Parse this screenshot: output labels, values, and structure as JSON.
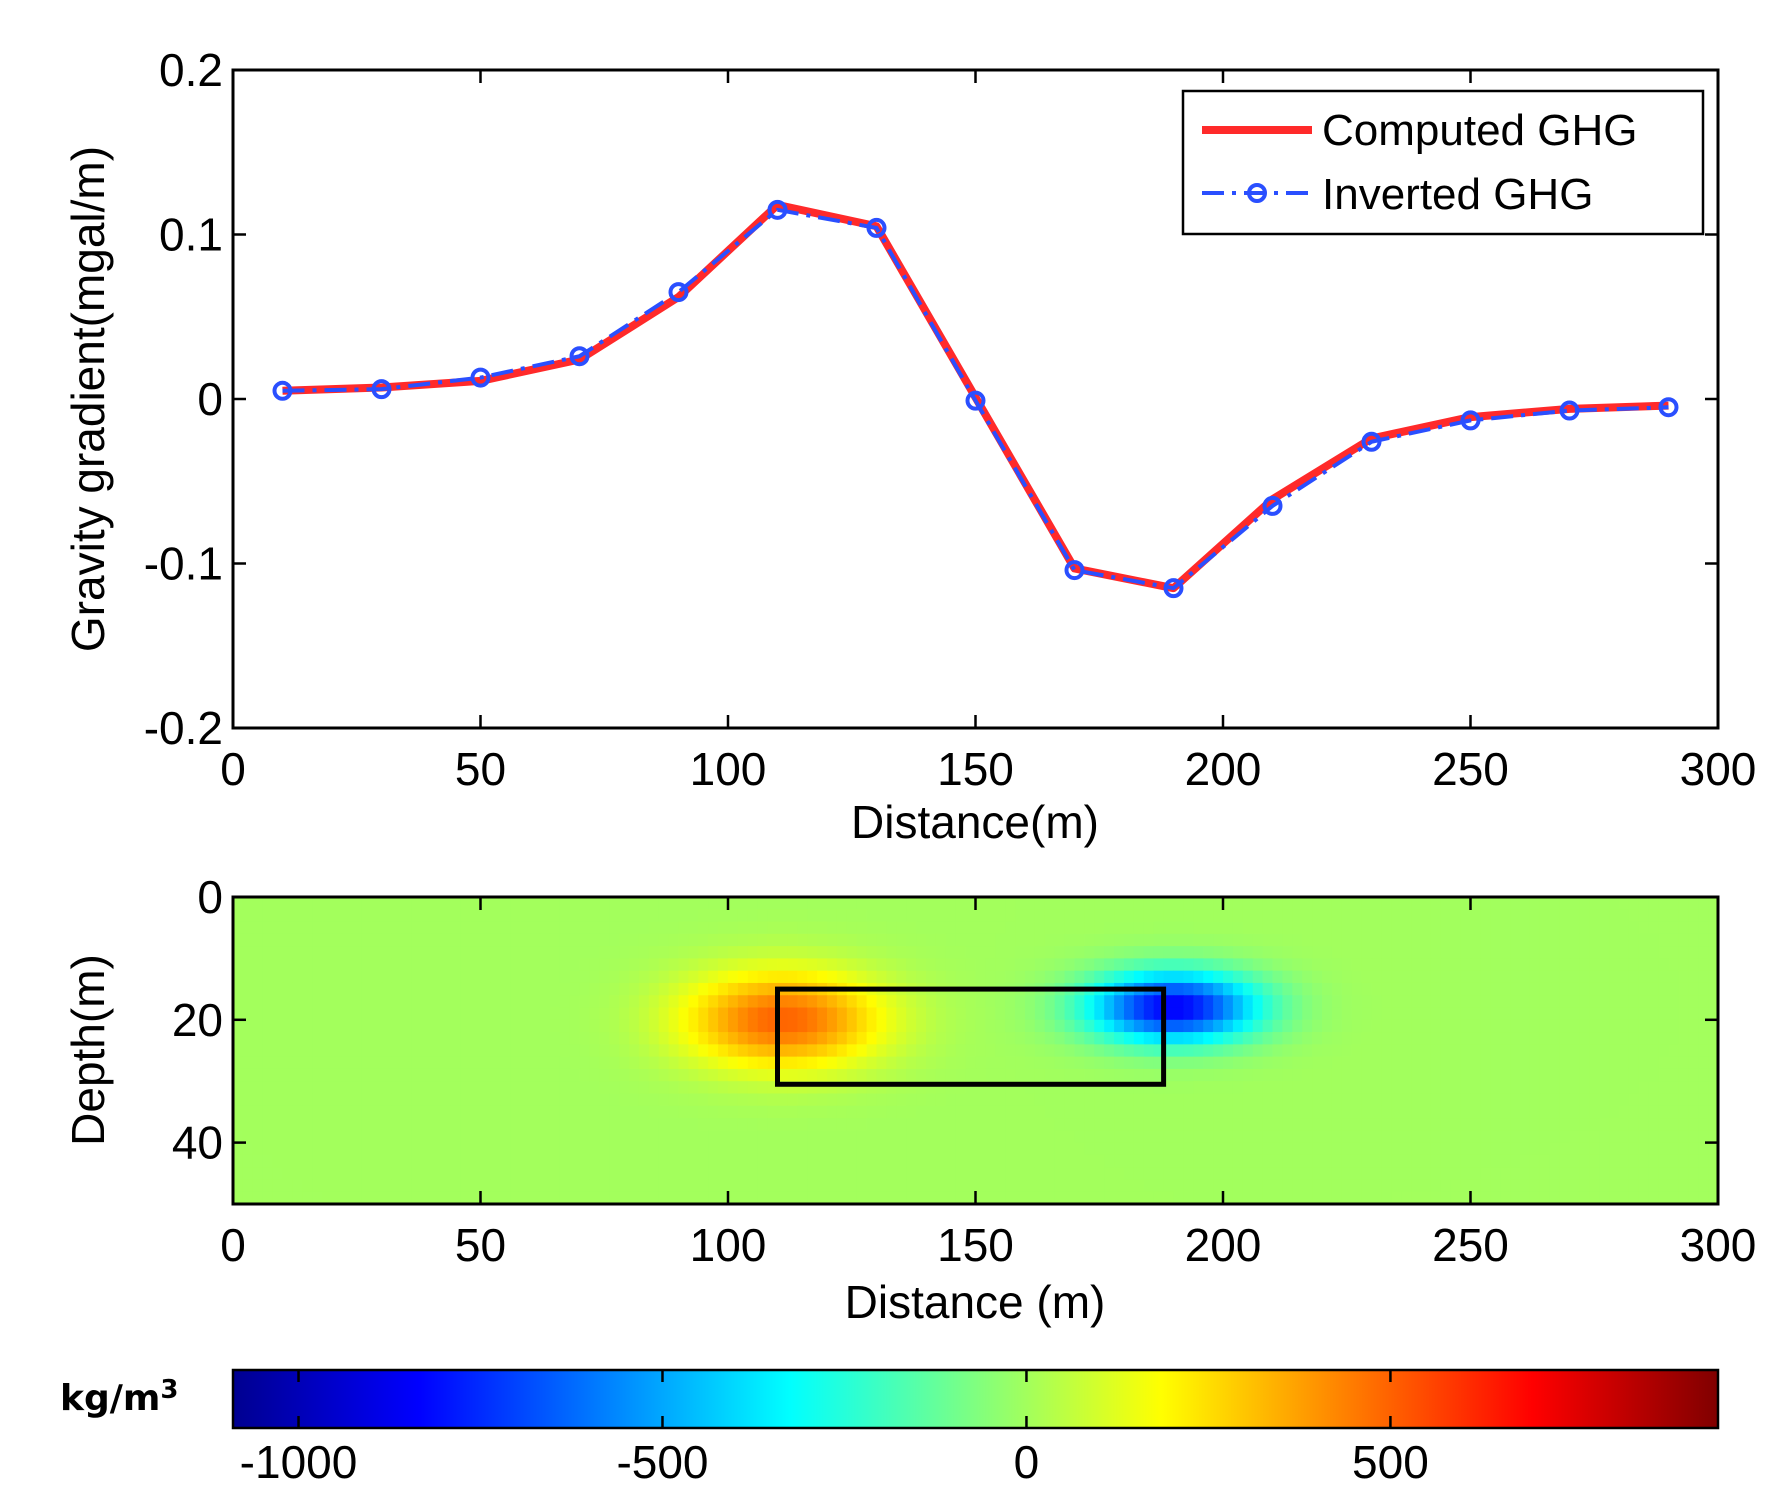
{
  "chart_data": [
    {
      "type": "line",
      "xlabel": "Distance(m)",
      "ylabel": "Gravity gradient(mgal/m)",
      "xlim": [
        0,
        300
      ],
      "ylim": [
        -0.2,
        0.2
      ],
      "xticks": [
        0,
        50,
        100,
        150,
        200,
        250,
        300
      ],
      "xtick_labels": [
        "0",
        "50",
        "100",
        "150",
        "200",
        "250",
        "300"
      ],
      "yticks": [
        0.2,
        0.1,
        0,
        -0.1,
        -0.2
      ],
      "ytick_labels": [
        "0.2",
        "0.1",
        "0",
        "-0.1",
        "-0.2"
      ],
      "legend_position": "top-right",
      "x": [
        10,
        30,
        50,
        70,
        90,
        110,
        130,
        150,
        170,
        190,
        210,
        230,
        250,
        270,
        290
      ],
      "series": [
        {
          "name": "Computed GHG",
          "color": "#ff2a2a",
          "style": "solid",
          "values": [
            0.005,
            0.007,
            0.011,
            0.024,
            0.062,
            0.118,
            0.105,
            0.001,
            -0.103,
            -0.115,
            -0.061,
            -0.024,
            -0.011,
            -0.006,
            -0.004
          ]
        },
        {
          "name": "Inverted GHG",
          "color": "#2a4fff",
          "style": "dash-dot with circle markers",
          "values": [
            0.005,
            0.006,
            0.013,
            0.026,
            0.065,
            0.115,
            0.104,
            -0.001,
            -0.104,
            -0.115,
            -0.065,
            -0.026,
            -0.013,
            -0.007,
            -0.005
          ]
        }
      ]
    },
    {
      "type": "heatmap",
      "xlabel": "Distance (m)",
      "ylabel": "Depth(m)",
      "xlim": [
        0,
        300
      ],
      "ylim": [
        0,
        50
      ],
      "xticks": [
        0,
        50,
        100,
        150,
        200,
        250,
        300
      ],
      "xtick_labels": [
        "0",
        "50",
        "100",
        "150",
        "200",
        "250",
        "300"
      ],
      "yticks": [
        0,
        20,
        40
      ],
      "ytick_labels": [
        "0",
        "20",
        "40"
      ],
      "background_value": 0,
      "anomalies": [
        {
          "label": "positive",
          "x_center": 111,
          "depth_center": 20,
          "x_spread": 14,
          "depth_spread": 5.5,
          "peak_value": 500
        },
        {
          "label": "negative",
          "x_center": 190,
          "depth_center": 18,
          "x_spread": 12,
          "depth_spread": 4,
          "peak_value": -850
        }
      ],
      "true_body": {
        "x_min": 110,
        "x_max": 188,
        "depth_min": 15,
        "depth_max": 30.5
      },
      "colorbar": {
        "label": "kg/m",
        "label_superscript": "3",
        "range": [
          -1090,
          950
        ],
        "ticks": [
          -1000,
          -500,
          0,
          500
        ],
        "tick_labels": [
          "-1000",
          "-500",
          "0",
          "500"
        ],
        "colormap": "jet"
      }
    }
  ]
}
